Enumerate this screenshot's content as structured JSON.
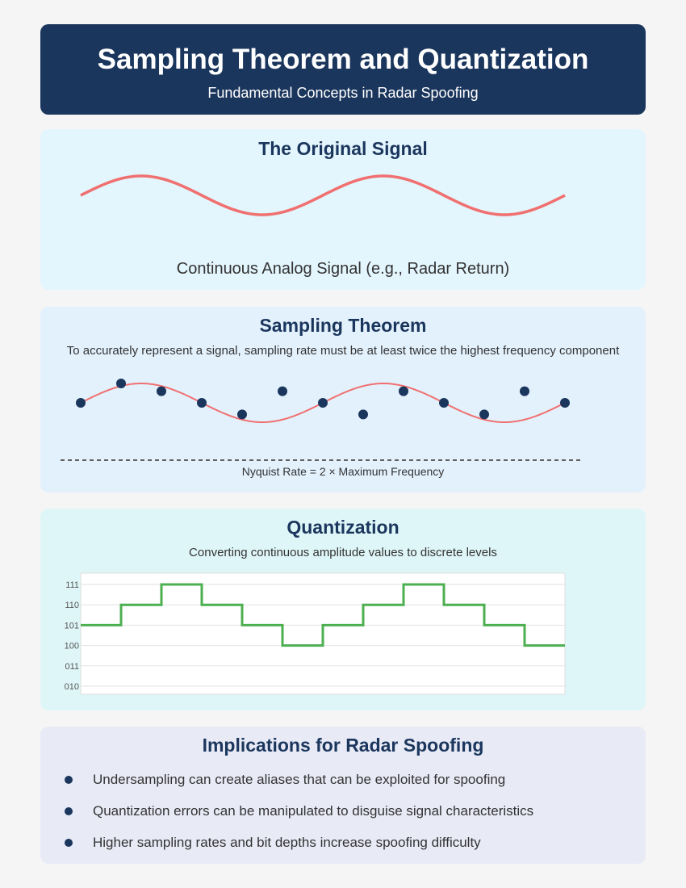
{
  "header": {
    "title": "Sampling Theorem and Quantization",
    "subtitle": "Fundamental Concepts in Radar Spoofing"
  },
  "colors": {
    "header_bg": "#1b365d",
    "signal": "#f07070",
    "sample_dot": "#1b365d",
    "quant_line": "#4caf50"
  },
  "original_signal": {
    "title": "The Original Signal",
    "caption": "Continuous Analog Signal (e.g., Radar Return)",
    "cycles": 2
  },
  "sampling": {
    "title": "Sampling Theorem",
    "description": "To accurately represent a signal, sampling rate must be at least twice the highest frequency component",
    "nyquist_label": "Nyquist Rate = 2 × Maximum Frequency",
    "sample_values": [
      0,
      1,
      0.6,
      0,
      -0.6,
      0.6,
      0,
      -0.6,
      0.6,
      0,
      -0.6,
      0.6,
      0
    ]
  },
  "quantization": {
    "title": "Quantization",
    "description": "Converting continuous amplitude values to discrete levels",
    "levels": [
      "111",
      "110",
      "101",
      "100",
      "011",
      "010"
    ],
    "steps": [
      "101",
      "110",
      "111",
      "110",
      "101",
      "100",
      "101",
      "110",
      "111",
      "110",
      "101",
      "100"
    ]
  },
  "implications": {
    "title": "Implications for Radar Spoofing",
    "items": [
      "Undersampling can create aliases that can be exploited for spoofing",
      "Quantization errors can be manipulated to disguise signal characteristics",
      "Higher sampling rates and bit depths increase spoofing difficulty"
    ]
  }
}
